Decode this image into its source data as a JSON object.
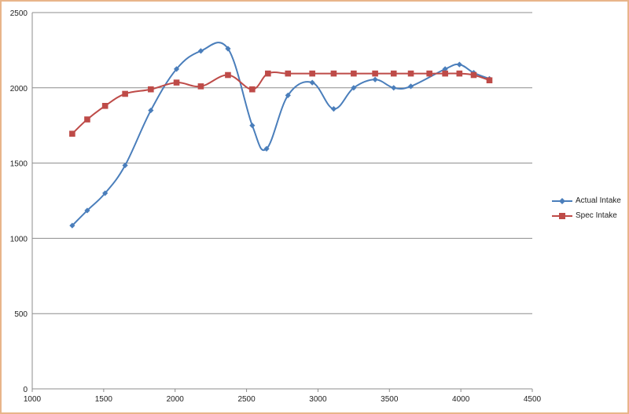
{
  "chart_data": {
    "type": "line",
    "xlim": [
      1000,
      4500
    ],
    "ylim": [
      0,
      2500
    ],
    "xticks": [
      1000,
      1500,
      2000,
      2500,
      3000,
      3500,
      4000,
      4500
    ],
    "yticks": [
      0,
      500,
      1000,
      1500,
      2000,
      2500
    ],
    "grid": "horizontal",
    "legend_position": "right",
    "series": [
      {
        "name": "Actual Intake",
        "color": "#4a7ebb",
        "marker": "diamond",
        "smooth": true,
        "points": [
          [
            1280,
            1085
          ],
          [
            1385,
            1185
          ],
          [
            1510,
            1300
          ],
          [
            1650,
            1485
          ],
          [
            1830,
            1850
          ],
          [
            2010,
            2125
          ],
          [
            2180,
            2245
          ],
          [
            2370,
            2260
          ],
          [
            2540,
            1750
          ],
          [
            2640,
            1595
          ],
          [
            2790,
            1950
          ],
          [
            2960,
            2035
          ],
          [
            3110,
            1860
          ],
          [
            3250,
            2000
          ],
          [
            3400,
            2055
          ],
          [
            3530,
            2000
          ],
          [
            3650,
            2010
          ],
          [
            3890,
            2125
          ],
          [
            3990,
            2155
          ],
          [
            4090,
            2100
          ],
          [
            4200,
            2060
          ]
        ]
      },
      {
        "name": "Spec Intake",
        "color": "#be4b48",
        "marker": "square",
        "smooth": true,
        "points": [
          [
            1280,
            1695
          ],
          [
            1385,
            1790
          ],
          [
            1510,
            1880
          ],
          [
            1650,
            1960
          ],
          [
            1830,
            1990
          ],
          [
            2010,
            2035
          ],
          [
            2180,
            2010
          ],
          [
            2370,
            2085
          ],
          [
            2540,
            1990
          ],
          [
            2650,
            2095
          ],
          [
            2790,
            2095
          ],
          [
            2960,
            2095
          ],
          [
            3110,
            2095
          ],
          [
            3250,
            2095
          ],
          [
            3400,
            2095
          ],
          [
            3530,
            2095
          ],
          [
            3650,
            2095
          ],
          [
            3780,
            2095
          ],
          [
            3890,
            2095
          ],
          [
            3990,
            2095
          ],
          [
            4090,
            2085
          ],
          [
            4200,
            2050
          ]
        ]
      }
    ]
  }
}
